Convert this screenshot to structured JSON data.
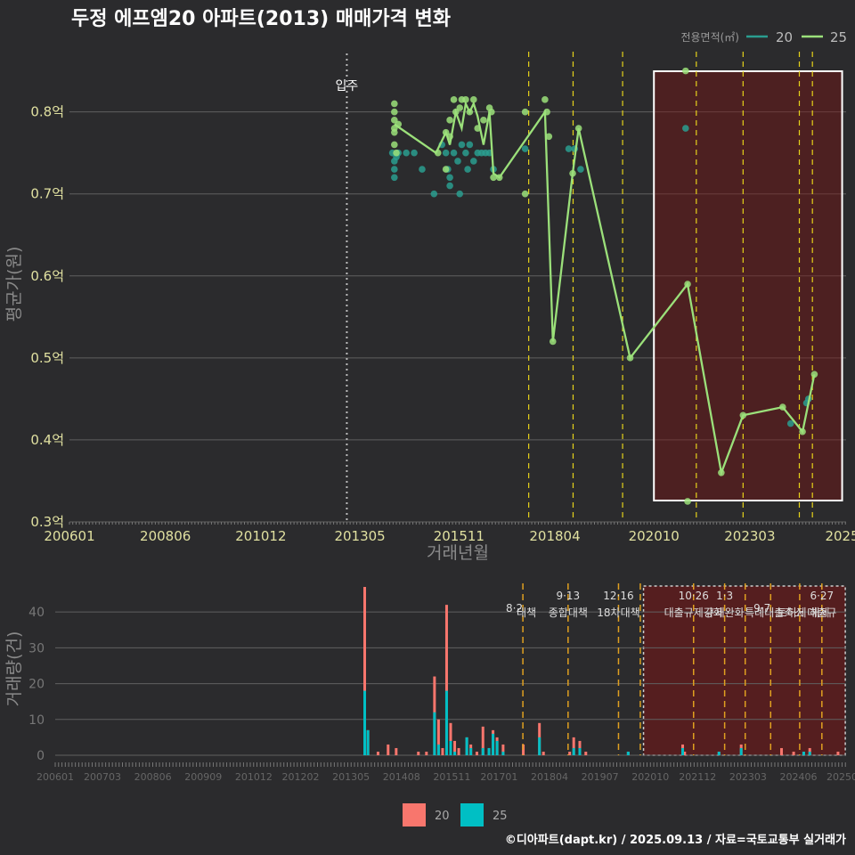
{
  "header": {
    "title": "두정 에프엠20 아파트(2013) 매매가격 변화"
  },
  "legend_top": {
    "title": "전용면적(㎡)",
    "items": [
      {
        "label": "20",
        "color": "#2a9d8f"
      },
      {
        "label": "25",
        "color": "#9be07a"
      }
    ]
  },
  "legend_bottom": {
    "items": [
      {
        "label": "20",
        "color": "#f8766d"
      },
      {
        "label": "25",
        "color": "#00bfc4"
      }
    ]
  },
  "footer": {
    "credit": "©디아파트(dapt.kr) / 2025.09.13 / 자료=국토교통부 실거래가"
  },
  "chart_data": [
    {
      "type": "line",
      "title": "두정 에프엠20 아파트(2013) 매매가격 변화",
      "xlabel": "거래년월",
      "ylabel": "평균가(원)",
      "xlim": [
        2006.0,
        2025.6
      ],
      "ylim": [
        0.3,
        0.88
      ],
      "x_ticks": [
        {
          "x": 2006.0,
          "label": "200601"
        },
        {
          "x": 2008.42,
          "label": "200806"
        },
        {
          "x": 2010.83,
          "label": "201012"
        },
        {
          "x": 2013.33,
          "label": "201305"
        },
        {
          "x": 2015.83,
          "label": "201511"
        },
        {
          "x": 2018.25,
          "label": "201804"
        },
        {
          "x": 2020.75,
          "label": "202010"
        },
        {
          "x": 2023.17,
          "label": "202303"
        },
        {
          "x": 2025.5,
          "label": "2025"
        }
      ],
      "y_ticks": [
        {
          "y": 0.3,
          "label": "0.3억"
        },
        {
          "y": 0.4,
          "label": "0.4억"
        },
        {
          "y": 0.5,
          "label": "0.5억"
        },
        {
          "y": 0.6,
          "label": "0.6억"
        },
        {
          "y": 0.7,
          "label": "0.7억"
        },
        {
          "y": 0.8,
          "label": "0.8억"
        }
      ],
      "move_in": {
        "x": 2013.0,
        "label": "입주"
      },
      "policy_lines": [
        2017.59,
        2018.71,
        2019.96,
        2021.82,
        2023.0,
        2024.42,
        2024.75
      ],
      "highlight_range": [
        2020.75,
        2025.5
      ],
      "series": [
        {
          "name": "25",
          "line": [
            [
              2014.2,
              0.785
            ],
            [
              2015.25,
              0.75
            ],
            [
              2015.5,
              0.775
            ],
            [
              2015.6,
              0.76
            ],
            [
              2015.75,
              0.8
            ],
            [
              2015.9,
              0.78
            ],
            [
              2016.0,
              0.81
            ],
            [
              2016.1,
              0.8
            ],
            [
              2016.2,
              0.81
            ],
            [
              2016.3,
              0.795
            ],
            [
              2016.45,
              0.76
            ],
            [
              2016.6,
              0.8
            ],
            [
              2016.7,
              0.725
            ],
            [
              2016.85,
              0.72
            ],
            [
              2018.0,
              0.8
            ],
            [
              2018.2,
              0.52
            ],
            [
              2018.7,
              0.725
            ],
            [
              2018.85,
              0.78
            ],
            [
              2020.15,
              0.5
            ],
            [
              2021.6,
              0.59
            ],
            [
              2022.45,
              0.36
            ],
            [
              2023.0,
              0.43
            ],
            [
              2024.0,
              0.44
            ],
            [
              2024.5,
              0.41
            ],
            [
              2024.8,
              0.48
            ]
          ],
          "points": [
            [
              2014.2,
              0.81
            ],
            [
              2014.2,
              0.8
            ],
            [
              2014.2,
              0.79
            ],
            [
              2014.2,
              0.78
            ],
            [
              2014.2,
              0.775
            ],
            [
              2014.2,
              0.76
            ],
            [
              2014.25,
              0.75
            ],
            [
              2014.3,
              0.785
            ],
            [
              2015.5,
              0.775
            ],
            [
              2015.6,
              0.79
            ],
            [
              2015.6,
              0.77
            ],
            [
              2015.7,
              0.815
            ],
            [
              2015.75,
              0.8
            ],
            [
              2015.85,
              0.805
            ],
            [
              2015.9,
              0.815
            ],
            [
              2016.0,
              0.815
            ],
            [
              2016.1,
              0.8
            ],
            [
              2016.2,
              0.815
            ],
            [
              2016.3,
              0.78
            ],
            [
              2016.45,
              0.79
            ],
            [
              2016.6,
              0.805
            ],
            [
              2016.65,
              0.8
            ],
            [
              2016.7,
              0.72
            ],
            [
              2016.85,
              0.72
            ],
            [
              2017.5,
              0.8
            ],
            [
              2017.5,
              0.7
            ],
            [
              2018.0,
              0.815
            ],
            [
              2018.05,
              0.8
            ],
            [
              2018.1,
              0.77
            ],
            [
              2018.2,
              0.52
            ],
            [
              2018.7,
              0.725
            ],
            [
              2018.85,
              0.78
            ],
            [
              2020.15,
              0.5
            ],
            [
              2021.55,
              0.85
            ],
            [
              2021.6,
              0.59
            ],
            [
              2021.6,
              0.325
            ],
            [
              2022.45,
              0.36
            ],
            [
              2023.0,
              0.43
            ],
            [
              2024.0,
              0.44
            ],
            [
              2024.5,
              0.41
            ],
            [
              2024.8,
              0.48
            ],
            [
              2015.5,
              0.73
            ],
            [
              2015.3,
              0.75
            ]
          ]
        },
        {
          "name": "20",
          "points": [
            [
              2014.15,
              0.75
            ],
            [
              2014.2,
              0.74
            ],
            [
              2014.2,
              0.73
            ],
            [
              2014.2,
              0.72
            ],
            [
              2014.25,
              0.745
            ],
            [
              2014.3,
              0.75
            ],
            [
              2014.5,
              0.75
            ],
            [
              2014.7,
              0.75
            ],
            [
              2014.9,
              0.73
            ],
            [
              2015.2,
              0.7
            ],
            [
              2015.4,
              0.76
            ],
            [
              2015.5,
              0.75
            ],
            [
              2015.55,
              0.73
            ],
            [
              2015.6,
              0.72
            ],
            [
              2015.6,
              0.71
            ],
            [
              2015.7,
              0.75
            ],
            [
              2015.8,
              0.74
            ],
            [
              2015.85,
              0.7
            ],
            [
              2015.9,
              0.76
            ],
            [
              2016.0,
              0.75
            ],
            [
              2016.05,
              0.73
            ],
            [
              2016.1,
              0.76
            ],
            [
              2016.2,
              0.74
            ],
            [
              2016.3,
              0.75
            ],
            [
              2016.4,
              0.75
            ],
            [
              2016.5,
              0.75
            ],
            [
              2016.6,
              0.75
            ],
            [
              2016.7,
              0.73
            ],
            [
              2017.5,
              0.755
            ],
            [
              2018.6,
              0.755
            ],
            [
              2018.75,
              0.755
            ],
            [
              2018.9,
              0.73
            ],
            [
              2021.55,
              0.78
            ],
            [
              2024.2,
              0.42
            ],
            [
              2024.6,
              0.445
            ],
            [
              2024.65,
              0.45
            ]
          ]
        }
      ]
    },
    {
      "type": "bar",
      "xlabel": "",
      "ylabel": "거래량(건)",
      "xlim": [
        2006.0,
        2025.6
      ],
      "ylim": [
        0,
        48
      ],
      "x_ticks": [
        {
          "x": 2006.0,
          "label": "200601"
        },
        {
          "x": 2007.17,
          "label": "200703"
        },
        {
          "x": 2008.42,
          "label": "200806"
        },
        {
          "x": 2009.67,
          "label": "200909"
        },
        {
          "x": 2010.92,
          "label": "201012"
        },
        {
          "x": 2012.08,
          "label": "201202"
        },
        {
          "x": 2013.33,
          "label": "201305"
        },
        {
          "x": 2014.58,
          "label": "201408"
        },
        {
          "x": 2015.83,
          "label": "201511"
        },
        {
          "x": 2017.0,
          "label": "201701"
        },
        {
          "x": 2018.25,
          "label": "201804"
        },
        {
          "x": 2019.5,
          "label": "201907"
        },
        {
          "x": 2020.75,
          "label": "202010"
        },
        {
          "x": 2021.92,
          "label": "202112"
        },
        {
          "x": 2023.17,
          "label": "202303"
        },
        {
          "x": 2024.42,
          "label": "202406"
        },
        {
          "x": 2025.5,
          "label": "20250"
        }
      ],
      "y_ticks": [
        {
          "y": 0,
          "label": "0"
        },
        {
          "y": 10,
          "label": "10"
        },
        {
          "y": 20,
          "label": "20"
        },
        {
          "y": 30,
          "label": "30"
        },
        {
          "y": 40,
          "label": "40"
        }
      ],
      "highlight_range": [
        2020.58,
        2025.58
      ],
      "policies": [
        {
          "x": 2017.59,
          "date": "8·2",
          "label": "대책",
          "row": 1
        },
        {
          "x": 2018.71,
          "date": "9·13",
          "label": "종합대책",
          "row": 0
        },
        {
          "x": 2019.96,
          "date": "12·16",
          "label": "18차대책",
          "row": 0
        },
        {
          "x": 2020.5,
          "date": "",
          "label": "",
          "row": 0
        },
        {
          "x": 2021.82,
          "date": "10·26",
          "label": "대출규제강화",
          "row": 0
        },
        {
          "x": 2022.59,
          "date": "1·3",
          "label": "규제완화",
          "row": 0
        },
        {
          "x": 2023.1,
          "date": "",
          "label": "",
          "row": 0
        },
        {
          "x": 2023.73,
          "date": "9·7",
          "label": "특례대출축소",
          "row": 1
        },
        {
          "x": 2024.45,
          "date": "",
          "label": "토허제 해제",
          "row": 1
        },
        {
          "x": 2025.0,
          "date": "6·27",
          "label": "대출규",
          "row": 0
        }
      ],
      "series": [
        {
          "name": "20",
          "bars": [
            [
              2013.67,
              47
            ],
            [
              2013.75,
              7
            ],
            [
              2014.0,
              1
            ],
            [
              2014.25,
              3
            ],
            [
              2014.45,
              2
            ],
            [
              2015.0,
              1
            ],
            [
              2015.2,
              1
            ],
            [
              2015.4,
              22
            ],
            [
              2015.5,
              10
            ],
            [
              2015.6,
              2
            ],
            [
              2015.7,
              42
            ],
            [
              2015.8,
              9
            ],
            [
              2015.9,
              4
            ],
            [
              2016.0,
              2
            ],
            [
              2016.2,
              5
            ],
            [
              2016.3,
              3
            ],
            [
              2016.45,
              1
            ],
            [
              2016.6,
              8
            ],
            [
              2016.75,
              2
            ],
            [
              2016.85,
              7
            ],
            [
              2016.95,
              5
            ],
            [
              2017.1,
              3
            ],
            [
              2017.6,
              3
            ],
            [
              2018.0,
              9
            ],
            [
              2018.1,
              1
            ],
            [
              2018.75,
              1
            ],
            [
              2018.85,
              5
            ],
            [
              2019.0,
              4
            ],
            [
              2019.15,
              1
            ],
            [
              2020.2,
              1
            ],
            [
              2021.55,
              3
            ],
            [
              2021.6,
              1
            ],
            [
              2022.45,
              1
            ],
            [
              2023.0,
              3
            ],
            [
              2024.0,
              2
            ],
            [
              2024.3,
              1
            ],
            [
              2024.55,
              1
            ],
            [
              2024.7,
              2
            ],
            [
              2025.4,
              1
            ]
          ]
        },
        {
          "name": "25",
          "bars": [
            [
              2013.67,
              18
            ],
            [
              2013.75,
              7
            ],
            [
              2015.4,
              12
            ],
            [
              2015.5,
              3
            ],
            [
              2015.7,
              18
            ],
            [
              2015.8,
              4
            ],
            [
              2015.9,
              1
            ],
            [
              2016.2,
              5
            ],
            [
              2016.3,
              2
            ],
            [
              2016.6,
              2
            ],
            [
              2016.75,
              2
            ],
            [
              2016.85,
              6
            ],
            [
              2016.95,
              4
            ],
            [
              2017.1,
              1
            ],
            [
              2018.0,
              5
            ],
            [
              2018.85,
              2
            ],
            [
              2019.0,
              2
            ],
            [
              2020.2,
              1
            ],
            [
              2021.55,
              2
            ],
            [
              2022.45,
              1
            ],
            [
              2023.0,
              2
            ],
            [
              2024.55,
              1
            ],
            [
              2024.7,
              1
            ]
          ]
        }
      ]
    }
  ]
}
